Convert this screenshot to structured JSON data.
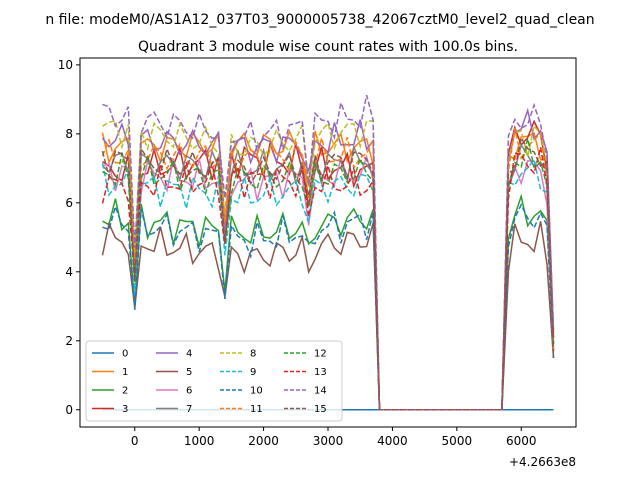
{
  "suptitle": "n file: modeM0/AS1A12_037T03_9000005738_42067cztM0_level2_quad_clean",
  "chart_data": {
    "type": "line",
    "title": "Quadrant 3 module wise count rates with 100.0s bins.",
    "xlabel": "",
    "ylabel": "",
    "x_offset_label": "+4.2663e8",
    "xlim": [
      -850,
      6850
    ],
    "ylim": [
      -0.5,
      10.2
    ],
    "xticks": [
      0,
      1000,
      2000,
      3000,
      4000,
      5000,
      6000
    ],
    "xtick_labels": [
      "0",
      "1000",
      "2000",
      "3000",
      "4000",
      "5000",
      "6000"
    ],
    "yticks": [
      0,
      2,
      4,
      6,
      8,
      10
    ],
    "ytick_labels": [
      "0",
      "2",
      "4",
      "6",
      "8",
      "10"
    ],
    "grid": false,
    "legend_position": "lower-left",
    "legend_columns": 4,
    "series": [
      {
        "name": "0",
        "color": "#1f77b4",
        "dash": "solid",
        "profile": [
          0,
          0,
          0
        ]
      },
      {
        "name": "1",
        "color": "#ff7f0e",
        "dash": "solid",
        "profile": [
          7.6,
          7.7,
          7.8
        ]
      },
      {
        "name": "2",
        "color": "#2ca02c",
        "dash": "solid",
        "profile": [
          5.6,
          5.1,
          5.7
        ]
      },
      {
        "name": "3",
        "color": "#d62728",
        "dash": "solid",
        "profile": [
          6.9,
          7.3,
          8.0
        ]
      },
      {
        "name": "4",
        "color": "#9467bd",
        "dash": "solid",
        "profile": [
          7.9,
          7.6,
          8.2
        ]
      },
      {
        "name": "5",
        "color": "#8c564b",
        "dash": "solid",
        "profile": [
          5.0,
          4.4,
          4.9
        ]
      },
      {
        "name": "6",
        "color": "#e377c2",
        "dash": "solid",
        "profile": [
          6.9,
          6.6,
          7.0
        ]
      },
      {
        "name": "7",
        "color": "#7f7f7f",
        "dash": "solid",
        "profile": [
          7.2,
          7.0,
          7.3
        ]
      },
      {
        "name": "8",
        "color": "#bcbd22",
        "dash": "dashed",
        "profile": [
          8.2,
          7.6,
          7.9
        ]
      },
      {
        "name": "9",
        "color": "#17becf",
        "dash": "dashed",
        "profile": [
          6.6,
          6.2,
          6.9
        ]
      },
      {
        "name": "10",
        "color": "#1f77b4",
        "dash": "dashed",
        "profile": [
          5.5,
          4.9,
          5.6
        ]
      },
      {
        "name": "11",
        "color": "#ff7f0e",
        "dash": "dashed",
        "profile": [
          7.4,
          7.3,
          7.7
        ]
      },
      {
        "name": "12",
        "color": "#2ca02c",
        "dash": "dashed",
        "profile": [
          6.9,
          6.7,
          7.3
        ]
      },
      {
        "name": "13",
        "color": "#d62728",
        "dash": "dashed",
        "profile": [
          6.5,
          6.7,
          7.2
        ]
      },
      {
        "name": "14",
        "color": "#9467bd",
        "dash": "dashed",
        "profile": [
          8.6,
          7.9,
          8.4
        ]
      },
      {
        "name": "15",
        "color": "#8c564b",
        "dash": "dashed",
        "profile": [
          7.3,
          6.9,
          7.5
        ]
      }
    ],
    "segment_x": [
      -500,
      -400,
      -300,
      -200,
      -100,
      0,
      100,
      200,
      300,
      400,
      500,
      600,
      700,
      800,
      900,
      1000,
      1100,
      1200,
      1300,
      1400,
      1500,
      1600,
      1700,
      1800,
      1900,
      2000,
      2100,
      2200,
      2300,
      2400,
      2500,
      2600,
      2700,
      2800,
      2900,
      3000,
      3100,
      3200,
      3300,
      3400,
      3500,
      3600,
      3700,
      3800,
      3900,
      4000,
      4100,
      4200,
      4300,
      4400,
      4500,
      4600,
      4700,
      4800,
      4900,
      5000,
      5100,
      5200,
      5300,
      5400,
      5500,
      5600,
      5700,
      5800,
      5900,
      6000,
      6100,
      6200,
      6300,
      6400,
      6500
    ],
    "active_ranges": [
      [
        -500,
        3700
      ],
      [
        5800,
        6400
      ]
    ],
    "dips": [
      [
        0,
        0.55
      ],
      [
        1400,
        0.72
      ],
      [
        2700,
        0.85
      ]
    ]
  }
}
